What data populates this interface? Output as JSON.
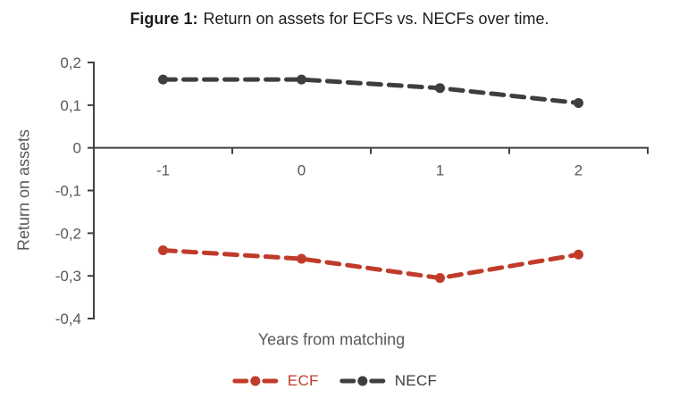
{
  "figure": {
    "title_prefix": "Figure 1:",
    "title_text": "Return on assets for ECFs vs. NECFs over time."
  },
  "chart_data": {
    "type": "line",
    "categories": [
      -1,
      0,
      1,
      2
    ],
    "series": [
      {
        "name": "ECF",
        "values": [
          -0.24,
          -0.26,
          -0.305,
          -0.25
        ],
        "color": "#c13b2a",
        "line_style": "dashed",
        "marker": "circle"
      },
      {
        "name": "NECF",
        "values": [
          0.16,
          0.16,
          0.14,
          0.105
        ],
        "color": "#3e3e3e",
        "line_style": "dashed",
        "marker": "circle"
      }
    ],
    "xlabel": "Years from matching",
    "ylabel": "Return on assets",
    "ylim": [
      -0.4,
      0.2
    ],
    "ytick_step": 0.1,
    "ytick_labels": [
      "0,2",
      "0,1",
      "0",
      "-0,1",
      "-0,2",
      "-0,3",
      "-0,4"
    ],
    "xtick_labels": [
      "-1",
      "0",
      "1",
      "2"
    ],
    "decimal_separator": ",",
    "grid": false,
    "legend_position": "bottom",
    "axis_color": "#404040",
    "tick_label_color": "#595959"
  },
  "legend": {
    "items": [
      {
        "label": "ECF",
        "color": "#c13b2a"
      },
      {
        "label": "NECF",
        "color": "#3e3e3e"
      }
    ]
  }
}
